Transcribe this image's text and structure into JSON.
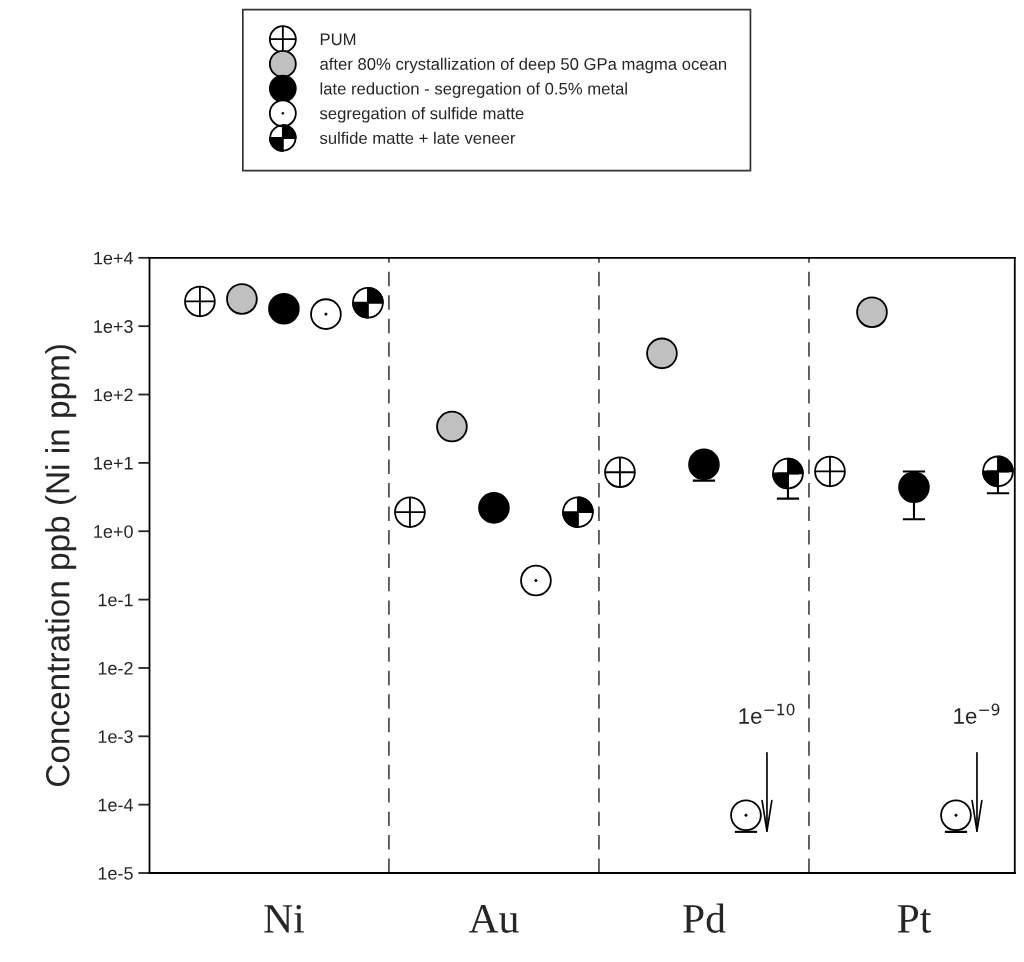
{
  "chart_data": {
    "type": "scatter",
    "ylabel": "Concentration ppb (Ni in ppm)",
    "categories": [
      "Ni",
      "Au",
      "Pd",
      "Pt"
    ],
    "log": "y",
    "ylim": [
      1e-05,
      10000
    ],
    "yticks": [
      {
        "value": 1e-05,
        "label": "1e-5"
      },
      {
        "value": 0.0001,
        "label": "1e-4"
      },
      {
        "value": 0.001,
        "label": "1e-3"
      },
      {
        "value": 0.01,
        "label": "1e-2"
      },
      {
        "value": 0.1,
        "label": "1e-1"
      },
      {
        "value": 1,
        "label": "1e+0"
      },
      {
        "value": 10,
        "label": "1e+1"
      },
      {
        "value": 100,
        "label": "1e+2"
      },
      {
        "value": 1000,
        "label": "1e+3"
      },
      {
        "value": 10000,
        "label": "1e+4"
      }
    ],
    "series": [
      {
        "name": "PUM",
        "color": "#ffffff",
        "values": [
          2300,
          1.9,
          7.3,
          7.5
        ]
      },
      {
        "name": "after 80% crystallization of deep 50 GPa magma ocean",
        "color": "#c0c0c0",
        "values": [
          2500,
          34,
          400,
          1600
        ]
      },
      {
        "name": "late reduction - segregation of 0.5% metal",
        "color": "#000000",
        "values": [
          1800,
          2.2,
          9.5,
          4.4
        ],
        "errors": [
          null,
          null,
          [
            5.5,
            9.5
          ],
          [
            1.5,
            7.5
          ]
        ]
      },
      {
        "name": "segregation of sulfide matte",
        "color": "#ffffff",
        "values": [
          1500,
          0.19,
          7e-05,
          7e-05
        ],
        "errors": [
          null,
          null,
          [
            4e-05,
            7e-05
          ],
          [
            4e-05,
            7e-05
          ]
        ]
      },
      {
        "name": "sulfide matte + late veneer",
        "color": "#000000",
        "values": [
          2200,
          1.9,
          7,
          7.5
        ],
        "errors": [
          null,
          null,
          [
            3.0,
            7
          ],
          [
            3.6,
            7.5
          ]
        ]
      }
    ],
    "annotations": [
      "1e$^{−10}$",
      "1e$^{−9}$"
    ],
    "marker": "circle",
    "grid": false,
    "legend": "top"
  }
}
